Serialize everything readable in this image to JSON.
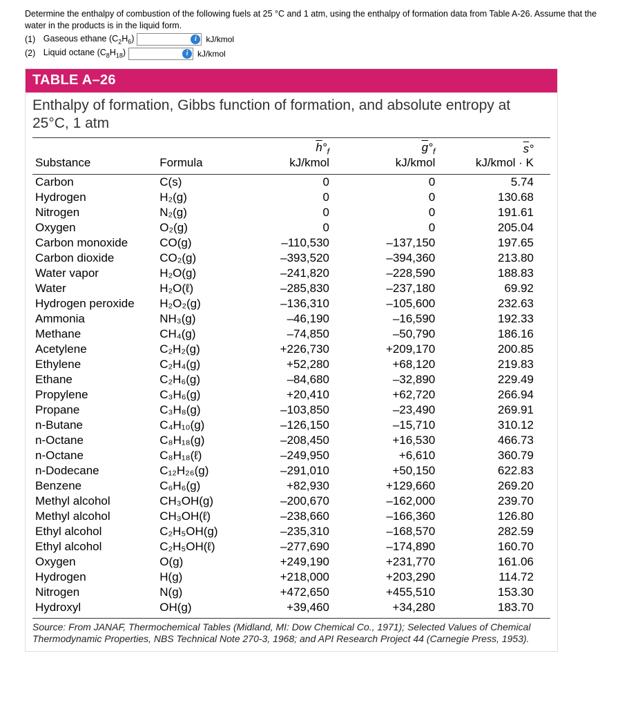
{
  "question": {
    "prompt": "Determine the enthalpy of combustion of the following fuels at 25 °C and 1 atm, using the enthalpy of formation data from Table A-26. Assume that the water in the products is in the liquid form.",
    "parts": [
      {
        "n": "(1)",
        "label": "Gaseous ethane (C",
        "sub1": "2",
        "mid": "H",
        "sub2": "6",
        "tail": ")",
        "unit": "kJ/kmol"
      },
      {
        "n": "(2)",
        "label": "Liquid octane (C",
        "sub1": "8",
        "mid": "H",
        "sub2": "18",
        "tail": ")",
        "unit": "kJ/kmol"
      }
    ]
  },
  "table": {
    "header": "TABLE A–26",
    "subheader": "Enthalpy of formation, Gibbs function of formation, and absolute entropy at 25°C, 1 atm",
    "col_labels": {
      "substance": "Substance",
      "formula": "Formula",
      "hf_unit": "kJ/kmol",
      "gf_unit": "kJ/kmol",
      "s_unit": "kJ/kmol · K"
    },
    "rows": [
      {
        "s": "Carbon",
        "f": "C(s)",
        "hf": "0",
        "gf": "0",
        "so": "5.74"
      },
      {
        "s": "Hydrogen",
        "f": "H₂(g)",
        "hf": "0",
        "gf": "0",
        "so": "130.68"
      },
      {
        "s": "Nitrogen",
        "f": "N₂(g)",
        "hf": "0",
        "gf": "0",
        "so": "191.61"
      },
      {
        "s": "Oxygen",
        "f": "O₂(g)",
        "hf": "0",
        "gf": "0",
        "so": "205.04"
      },
      {
        "s": "Carbon monoxide",
        "f": "CO(g)",
        "hf": "–110,530",
        "gf": "–137,150",
        "so": "197.65"
      },
      {
        "s": "Carbon dioxide",
        "f": "CO₂(g)",
        "hf": "–393,520",
        "gf": "–394,360",
        "so": "213.80"
      },
      {
        "s": "Water vapor",
        "f": "H₂O(g)",
        "hf": "–241,820",
        "gf": "–228,590",
        "so": "188.83"
      },
      {
        "s": "Water",
        "f": "H₂O(ℓ)",
        "hf": "–285,830",
        "gf": "–237,180",
        "so": "69.92"
      },
      {
        "s": "Hydrogen peroxide",
        "f": "H₂O₂(g)",
        "hf": "–136,310",
        "gf": "–105,600",
        "so": "232.63"
      },
      {
        "s": "Ammonia",
        "f": "NH₃(g)",
        "hf": "–46,190",
        "gf": "–16,590",
        "so": "192.33"
      },
      {
        "s": "Methane",
        "f": "CH₄(g)",
        "hf": "–74,850",
        "gf": "–50,790",
        "so": "186.16"
      },
      {
        "s": "Acetylene",
        "f": "C₂H₂(g)",
        "hf": "+226,730",
        "gf": "+209,170",
        "so": "200.85"
      },
      {
        "s": "Ethylene",
        "f": "C₂H₄(g)",
        "hf": "+52,280",
        "gf": "+68,120",
        "so": "219.83"
      },
      {
        "s": "Ethane",
        "f": "C₂H₆(g)",
        "hf": "–84,680",
        "gf": "–32,890",
        "so": "229.49"
      },
      {
        "s": "Propylene",
        "f": "C₃H₆(g)",
        "hf": "+20,410",
        "gf": "+62,720",
        "so": "266.94"
      },
      {
        "s": "Propane",
        "f": "C₃H₈(g)",
        "hf": "–103,850",
        "gf": "–23,490",
        "so": "269.91"
      },
      {
        "s": "n-Butane",
        "f": "C₄H₁₀(g)",
        "hf": "–126,150",
        "gf": "–15,710",
        "so": "310.12"
      },
      {
        "s": "n-Octane",
        "f": "C₈H₁₈(g)",
        "hf": "–208,450",
        "gf": "+16,530",
        "so": "466.73"
      },
      {
        "s": "n-Octane",
        "f": "C₈H₁₈(ℓ)",
        "hf": "–249,950",
        "gf": "+6,610",
        "so": "360.79"
      },
      {
        "s": "n-Dodecane",
        "f": "C₁₂H₂₆(g)",
        "hf": "–291,010",
        "gf": "+50,150",
        "so": "622.83"
      },
      {
        "s": "Benzene",
        "f": "C₆H₆(g)",
        "hf": "+82,930",
        "gf": "+129,660",
        "so": "269.20"
      },
      {
        "s": "Methyl alcohol",
        "f": "CH₃OH(g)",
        "hf": "–200,670",
        "gf": "–162,000",
        "so": "239.70"
      },
      {
        "s": "Methyl alcohol",
        "f": "CH₃OH(ℓ)",
        "hf": "–238,660",
        "gf": "–166,360",
        "so": "126.80"
      },
      {
        "s": "Ethyl alcohol",
        "f": "C₂H₅OH(g)",
        "hf": "–235,310",
        "gf": "–168,570",
        "so": "282.59"
      },
      {
        "s": "Ethyl alcohol",
        "f": "C₂H₅OH(ℓ)",
        "hf": "–277,690",
        "gf": "–174,890",
        "so": "160.70"
      },
      {
        "s": "Oxygen",
        "f": "O(g)",
        "hf": "+249,190",
        "gf": "+231,770",
        "so": "161.06"
      },
      {
        "s": "Hydrogen",
        "f": "H(g)",
        "hf": "+218,000",
        "gf": "+203,290",
        "so": "114.72"
      },
      {
        "s": "Nitrogen",
        "f": "N(g)",
        "hf": "+472,650",
        "gf": "+455,510",
        "so": "153.30"
      },
      {
        "s": "Hydroxyl",
        "f": "OH(g)",
        "hf": "+39,460",
        "gf": "+34,280",
        "so": "183.70"
      }
    ],
    "footnote_lead": "Source:",
    "footnote": " From JANAF, Thermochemical Tables (Midland, MI: Dow Chemical Co., 1971); Selected Values of Chemical Thermodynamic Properties, NBS Technical Note 270-3, 1968; and API Research Project 44 (Carnegie Press, 1953)."
  },
  "style": {
    "header_bg": "#d11d6b",
    "header_color": "#ffffff",
    "rule_color": "#333333"
  }
}
